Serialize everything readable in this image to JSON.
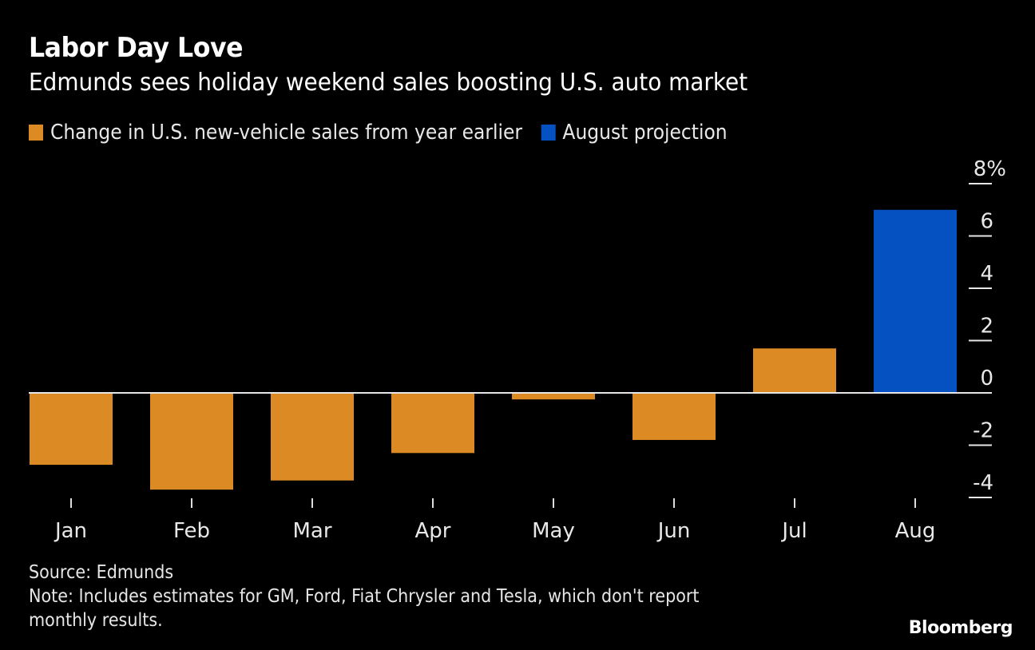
{
  "header": {
    "title": "Labor Day Love",
    "subtitle": "Edmunds sees holiday weekend sales boosting U.S. auto market"
  },
  "legend": [
    {
      "label": "Change in U.S. new-vehicle sales from year earlier",
      "color": "#dc8a23"
    },
    {
      "label": "August projection",
      "color": "#0551c2"
    }
  ],
  "footer": {
    "source": "Source: Edmunds",
    "note_line1": "Note: Includes estimates for GM, Ford, Fiat Chrysler and Tesla, which don't report",
    "note_line2": "monthly results."
  },
  "brand": "Bloomberg",
  "chart_data": {
    "type": "bar",
    "title": "Labor Day Love",
    "subtitle": "Edmunds sees holiday weekend sales boosting U.S. auto market",
    "categories": [
      "Jan",
      "Feb",
      "Mar",
      "Apr",
      "May",
      "Jun",
      "Jul",
      "Aug"
    ],
    "series": [
      {
        "name": "Change in U.S. new-vehicle sales from year earlier",
        "color": "#dc8a23",
        "values": [
          -2.75,
          -3.7,
          -3.35,
          -2.3,
          -0.25,
          -1.8,
          1.7,
          null
        ]
      },
      {
        "name": "August projection",
        "color": "#0551c2",
        "values": [
          null,
          null,
          null,
          null,
          null,
          null,
          null,
          7.0
        ]
      }
    ],
    "xlabel": "",
    "ylabel": "",
    "ylim": [
      -4.5,
      8
    ],
    "yticks": [
      8,
      6,
      4,
      2,
      0,
      -2,
      -4
    ],
    "ytick_labels": [
      "8%",
      "6",
      "4",
      "2",
      "0",
      "-2",
      "-4"
    ],
    "y_axis_side": "right",
    "legend_position": "top-left",
    "grid": false
  }
}
